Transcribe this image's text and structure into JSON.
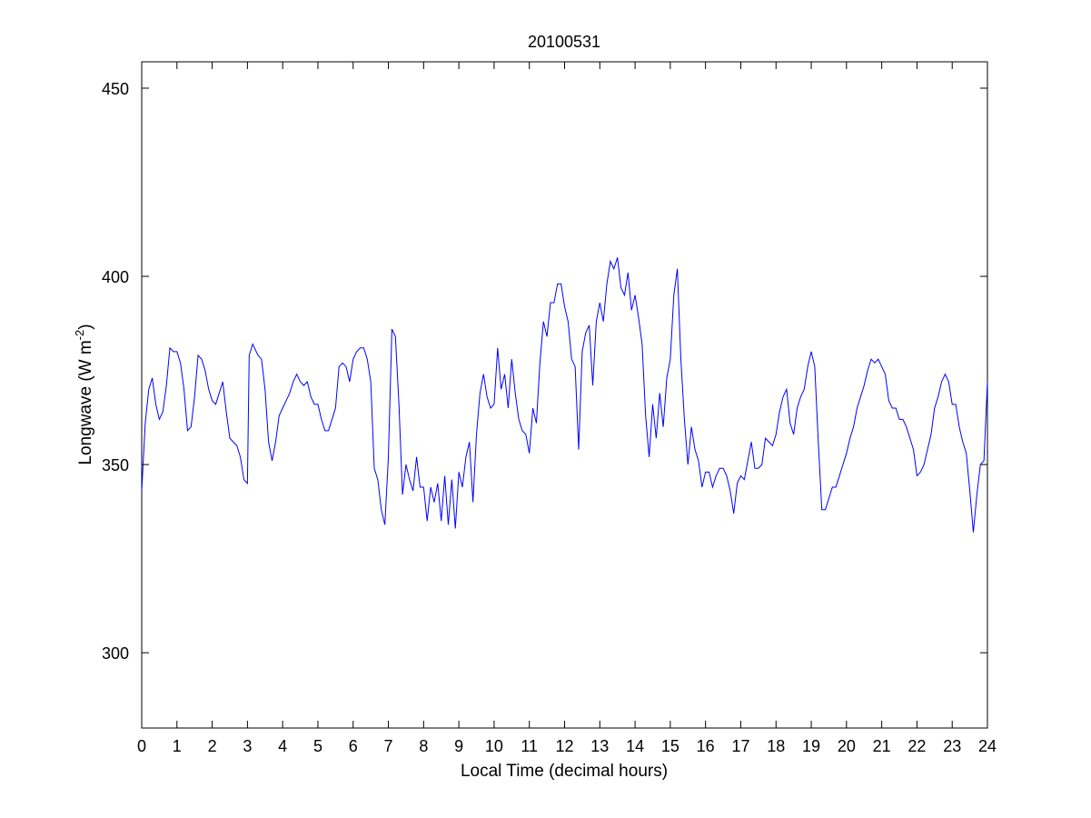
{
  "chart_data": {
    "type": "line",
    "title": "20100531",
    "xlabel": "Local Time (decimal hours)",
    "ylabel": {
      "main": "Longwave (W m",
      "sup": "-2",
      "close": ")"
    },
    "xlim": [
      0,
      24
    ],
    "ylim": [
      280,
      457
    ],
    "xticks": [
      0,
      1,
      2,
      3,
      4,
      5,
      6,
      7,
      8,
      9,
      10,
      11,
      12,
      13,
      14,
      15,
      16,
      17,
      18,
      19,
      20,
      21,
      22,
      23,
      24
    ],
    "yticks": [
      300,
      350,
      400,
      450
    ],
    "grid": false,
    "line_color": "#0000ff",
    "series": [
      {
        "x": [
          0.0,
          0.1,
          0.2,
          0.3,
          0.4,
          0.5,
          0.6,
          0.7,
          0.8,
          0.9,
          1.0,
          1.1,
          1.2,
          1.3,
          1.4,
          1.5,
          1.6,
          1.7,
          1.8,
          1.9,
          2.0,
          2.1,
          2.2,
          2.3,
          2.4,
          2.5,
          2.6,
          2.7,
          2.8,
          2.9,
          3.0,
          3.05,
          3.15,
          3.3,
          3.4,
          3.5,
          3.6,
          3.7,
          3.8,
          3.9,
          4.0,
          4.1,
          4.2,
          4.3,
          4.4,
          4.5,
          4.6,
          4.7,
          4.8,
          4.9,
          5.0,
          5.1,
          5.2,
          5.3,
          5.4,
          5.5,
          5.6,
          5.7,
          5.8,
          5.9,
          6.0,
          6.1,
          6.2,
          6.3,
          6.4,
          6.5,
          6.6,
          6.7,
          6.8,
          6.9,
          7.0,
          7.1,
          7.2,
          7.3,
          7.4,
          7.5,
          7.6,
          7.7,
          7.8,
          7.9,
          8.0,
          8.1,
          8.2,
          8.3,
          8.4,
          8.5,
          8.6,
          8.7,
          8.8,
          8.9,
          9.0,
          9.1,
          9.2,
          9.3,
          9.4,
          9.5,
          9.6,
          9.7,
          9.8,
          9.9,
          10.0,
          10.1,
          10.2,
          10.3,
          10.4,
          10.5,
          10.6,
          10.7,
          10.8,
          10.9,
          11.0,
          11.1,
          11.2,
          11.3,
          11.4,
          11.5,
          11.6,
          11.7,
          11.8,
          11.9,
          12.0,
          12.1,
          12.2,
          12.3,
          12.4,
          12.5,
          12.6,
          12.7,
          12.8,
          12.9,
          13.0,
          13.1,
          13.2,
          13.3,
          13.4,
          13.5,
          13.6,
          13.7,
          13.8,
          13.9,
          14.0,
          14.1,
          14.2,
          14.3,
          14.4,
          14.5,
          14.6,
          14.7,
          14.8,
          14.9,
          15.0,
          15.1,
          15.2,
          15.3,
          15.4,
          15.5,
          15.6,
          15.7,
          15.8,
          15.9,
          16.0,
          16.1,
          16.2,
          16.3,
          16.4,
          16.5,
          16.6,
          16.7,
          16.8,
          16.9,
          17.0,
          17.1,
          17.2,
          17.3,
          17.4,
          17.5,
          17.6,
          17.7,
          17.8,
          17.9,
          18.0,
          18.1,
          18.2,
          18.3,
          18.4,
          18.5,
          18.6,
          18.7,
          18.8,
          18.9,
          19.0,
          19.1,
          19.2,
          19.3,
          19.4,
          19.5,
          19.6,
          19.7,
          19.8,
          19.9,
          20.0,
          20.1,
          20.2,
          20.3,
          20.4,
          20.5,
          20.6,
          20.7,
          20.8,
          20.9,
          21.0,
          21.1,
          21.2,
          21.3,
          21.4,
          21.5,
          21.6,
          21.7,
          21.8,
          21.9,
          22.0,
          22.1,
          22.2,
          22.3,
          22.4,
          22.5,
          22.6,
          22.7,
          22.8,
          22.9,
          23.0,
          23.1,
          23.2,
          23.3,
          23.4,
          23.5,
          23.6,
          23.7,
          23.8,
          23.9,
          24.0
        ],
        "y": [
          343,
          361,
          370,
          373,
          366,
          362,
          364,
          371,
          381,
          380,
          380,
          377,
          370,
          359,
          360,
          368,
          379,
          378,
          375,
          370,
          367,
          366,
          369,
          372,
          364,
          357,
          356,
          355,
          352,
          346,
          345,
          379,
          382,
          379,
          378,
          370,
          356,
          351,
          356,
          363,
          365,
          367,
          369,
          372,
          374,
          372,
          371,
          372,
          368,
          366,
          366,
          362,
          359,
          359,
          362,
          365,
          376,
          377,
          376,
          372,
          378,
          380,
          381,
          381,
          378,
          372,
          349,
          346,
          338,
          334,
          352,
          386,
          384,
          366,
          342,
          350,
          346,
          343,
          352,
          344,
          344,
          335,
          344,
          340,
          345,
          335,
          347,
          334,
          346,
          333,
          348,
          344,
          352,
          356,
          340,
          358,
          369,
          374,
          368,
          365,
          366,
          381,
          370,
          374,
          365,
          378,
          369,
          362,
          359,
          358,
          353,
          365,
          361,
          377,
          388,
          384,
          393,
          393,
          398,
          398,
          392,
          388,
          378,
          376,
          354,
          380,
          385,
          387,
          371,
          388,
          393,
          388,
          398,
          404,
          402,
          405,
          397,
          395,
          401,
          391,
          395,
          389,
          382,
          363,
          352,
          366,
          357,
          369,
          360,
          373,
          378,
          395,
          402,
          378,
          362,
          350,
          360,
          354,
          351,
          344,
          348,
          348,
          344,
          347,
          349,
          349,
          347,
          343,
          337,
          345,
          347,
          346,
          351,
          356,
          349,
          349,
          350,
          357,
          356,
          355,
          358,
          364,
          368,
          370,
          361,
          358,
          365,
          368,
          370,
          376,
          380,
          376,
          356,
          338,
          338,
          341,
          344,
          344,
          347,
          350,
          353,
          357,
          360,
          365,
          368,
          371,
          375,
          378,
          377,
          378,
          376,
          374,
          367,
          365,
          365,
          362,
          362,
          360,
          357,
          354,
          347,
          348,
          350,
          354,
          358,
          365,
          368,
          372,
          374,
          372,
          366,
          366,
          360,
          356,
          353,
          343,
          332,
          342,
          350,
          351,
          372
        ]
      }
    ]
  }
}
